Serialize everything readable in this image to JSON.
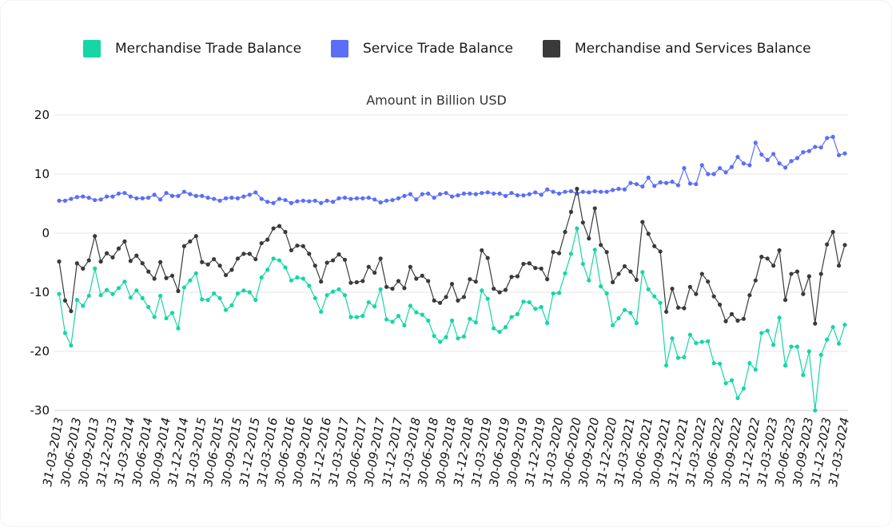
{
  "colors": {
    "merchandise": "#16d6a4",
    "service": "#5a6ef7",
    "combined": "#3a3a3a"
  },
  "chart_data": {
    "type": "line",
    "title": "Amount in Billion USD",
    "xlabel": "",
    "ylabel": "",
    "ylim": [
      -30,
      20
    ],
    "y_ticks": [
      20,
      10,
      0,
      -10,
      -20,
      -30
    ],
    "y_tick_labels": [
      "20",
      "10",
      "0",
      "-10",
      "-20",
      "-30"
    ],
    "x_tick_labels": [
      "31-03-2013",
      "30-06-2013",
      "30-09-2013",
      "31-12-2013",
      "31-03-2014",
      "30-06-2014",
      "30-09-2014",
      "31-12-2014",
      "31-03-2015",
      "30-06-2015",
      "30-09-2015",
      "31-12-2015",
      "31-03-2016",
      "30-06-2016",
      "30-09-2016",
      "31-12-2016",
      "31-03-2017",
      "30-06-2017",
      "30-09-2017",
      "31-12-2017",
      "31-03-2018",
      "30-06-2018",
      "30-09-2018",
      "31-12-2018",
      "31-03-2019",
      "30-06-2019",
      "30-09-2019",
      "31-12-2019",
      "31-03-2020",
      "30-06-2020",
      "30-09-2020",
      "31-12-2020",
      "31-03-2021",
      "30-06-2021",
      "30-09-2021",
      "31-12-2021",
      "31-03-2022",
      "30-06-2022",
      "30-09-2022",
      "31-12-2022",
      "31-03-2023",
      "30-06-2023",
      "30-09-2023",
      "31-12-2023",
      "31-03-2024"
    ],
    "x_range": [
      "2013-03",
      "2024-03"
    ],
    "x_unit": "month",
    "series": [
      {
        "name": "Merchandise Trade Balance",
        "values": [
          -10.3,
          -16.9,
          -19.0,
          -11.3,
          -12.3,
          -10.6,
          -6.0,
          -10.5,
          -9.6,
          -10.3,
          -9.3,
          -8.2,
          -10.9,
          -9.7,
          -11.0,
          -12.5,
          -14.2,
          -10.6,
          -14.4,
          -13.5,
          -16.1,
          -9.2,
          -8.0,
          -6.8,
          -11.2,
          -11.3,
          -10.2,
          -11.0,
          -13.0,
          -12.2,
          -10.2,
          -9.7,
          -10.0,
          -11.3,
          -7.5,
          -6.2,
          -4.3,
          -4.6,
          -5.8,
          -8.0,
          -7.5,
          -7.7,
          -8.9,
          -11.0,
          -13.3,
          -10.5,
          -9.9,
          -9.5,
          -10.5,
          -14.2,
          -14.2,
          -14.0,
          -11.7,
          -12.4,
          -9.5,
          -14.6,
          -15.0,
          -14.0,
          -15.6,
          -12.3,
          -13.4,
          -13.8,
          -14.8,
          -17.4,
          -18.4,
          -17.6,
          -14.8,
          -17.8,
          -17.5,
          -14.5,
          -15.1,
          -9.7,
          -11.1,
          -16.1,
          -16.7,
          -15.9,
          -14.2,
          -13.7,
          -11.6,
          -11.7,
          -12.8,
          -12.5,
          -15.2,
          -10.2,
          -10.1,
          -6.8,
          -3.5,
          0.8,
          -5.2,
          -8.0,
          -2.8,
          -9.0,
          -10.2,
          -15.6,
          -14.4,
          -13.0,
          -13.5,
          -15.2,
          -6.6,
          -9.5,
          -10.7,
          -11.8,
          -22.4,
          -17.8,
          -21.1,
          -21.0,
          -17.2,
          -18.6,
          -18.4,
          -18.3,
          -22.0,
          -22.1,
          -25.4,
          -24.9,
          -27.9,
          -26.3,
          -22.0,
          -23.1,
          -16.9,
          -16.5,
          -18.9,
          -14.3,
          -22.4,
          -19.2,
          -19.2,
          -24.0,
          -20.0,
          -30.0,
          -20.6,
          -18.0,
          -15.9,
          -18.7,
          -15.5
        ]
      },
      {
        "name": "Service Trade Balance",
        "values": [
          5.5,
          5.5,
          5.8,
          6.1,
          6.2,
          6.0,
          5.6,
          5.7,
          6.2,
          6.2,
          6.7,
          6.8,
          6.2,
          5.9,
          5.9,
          6.0,
          6.5,
          5.7,
          6.8,
          6.3,
          6.3,
          7.0,
          6.6,
          6.3,
          6.3,
          6.0,
          5.8,
          5.5,
          5.9,
          6.0,
          5.9,
          6.2,
          6.5,
          6.9,
          5.8,
          5.3,
          5.1,
          5.8,
          5.6,
          5.1,
          5.4,
          5.5,
          5.4,
          5.5,
          5.1,
          5.5,
          5.3,
          5.9,
          6.0,
          5.8,
          5.9,
          5.9,
          6.0,
          5.7,
          5.2,
          5.5,
          5.6,
          5.9,
          6.3,
          6.6,
          5.7,
          6.6,
          6.7,
          6.0,
          6.6,
          6.8,
          6.2,
          6.4,
          6.7,
          6.7,
          6.6,
          6.8,
          6.9,
          6.7,
          6.7,
          6.3,
          6.8,
          6.4,
          6.4,
          6.6,
          6.9,
          6.5,
          7.4,
          7.0,
          6.7,
          7.0,
          7.1,
          6.7,
          7.0,
          6.9,
          7.1,
          7.0,
          7.0,
          7.3,
          7.5,
          7.4,
          8.5,
          8.3,
          7.9,
          9.4,
          8.0,
          8.6,
          8.5,
          8.7,
          8.1,
          11.0,
          8.4,
          8.3,
          11.5,
          10.0,
          10.0,
          11.0,
          10.3,
          11.2,
          12.9,
          11.8,
          11.5,
          15.3,
          13.3,
          12.4,
          13.4,
          11.8,
          11.1,
          12.2,
          12.7,
          13.7,
          13.9,
          14.6,
          14.5,
          16.1,
          16.3,
          13.2,
          13.5
        ]
      },
      {
        "name": "Merchandise and Services Balance",
        "values": [
          -4.8,
          -11.4,
          -13.2,
          -5.1,
          -6.0,
          -4.6,
          -0.5,
          -4.8,
          -3.4,
          -4.1,
          -2.6,
          -1.4,
          -4.7,
          -3.8,
          -5.1,
          -6.5,
          -7.7,
          -4.9,
          -7.6,
          -7.2,
          -9.8,
          -2.2,
          -1.4,
          -0.5,
          -4.9,
          -5.3,
          -4.4,
          -5.5,
          -7.1,
          -6.2,
          -4.3,
          -3.5,
          -3.5,
          -4.4,
          -1.7,
          -1.1,
          0.8,
          1.2,
          0.2,
          -2.9,
          -2.1,
          -2.2,
          -3.5,
          -5.5,
          -8.2,
          -5.0,
          -4.6,
          -3.6,
          -4.5,
          -8.4,
          -8.3,
          -8.1,
          -5.7,
          -6.7,
          -4.3,
          -9.1,
          -9.4,
          -8.1,
          -9.3,
          -5.7,
          -7.7,
          -7.2,
          -8.1,
          -11.4,
          -11.8,
          -10.8,
          -8.6,
          -11.4,
          -10.8,
          -7.8,
          -8.2,
          -2.9,
          -4.2,
          -9.4,
          -10.0,
          -9.6,
          -7.4,
          -7.3,
          -5.2,
          -5.1,
          -5.9,
          -6.0,
          -7.8,
          -3.2,
          -3.4,
          0.2,
          3.6,
          7.5,
          1.8,
          -0.9,
          4.2,
          -2.0,
          -3.2,
          -8.3,
          -6.9,
          -5.6,
          -6.5,
          -7.9,
          1.9,
          -0.1,
          -2.2,
          -3.1,
          -13.3,
          -9.4,
          -12.6,
          -12.7,
          -9.1,
          -10.3,
          -6.9,
          -8.2,
          -10.7,
          -12.1,
          -14.9,
          -13.7,
          -14.8,
          -14.5,
          -10.5,
          -8.0,
          -4.0,
          -4.3,
          -5.5,
          -2.9,
          -11.3,
          -6.9,
          -6.5,
          -10.3,
          -7.3,
          -15.3,
          -6.9,
          -1.9,
          0.2,
          -5.5,
          -2.0
        ]
      }
    ]
  }
}
